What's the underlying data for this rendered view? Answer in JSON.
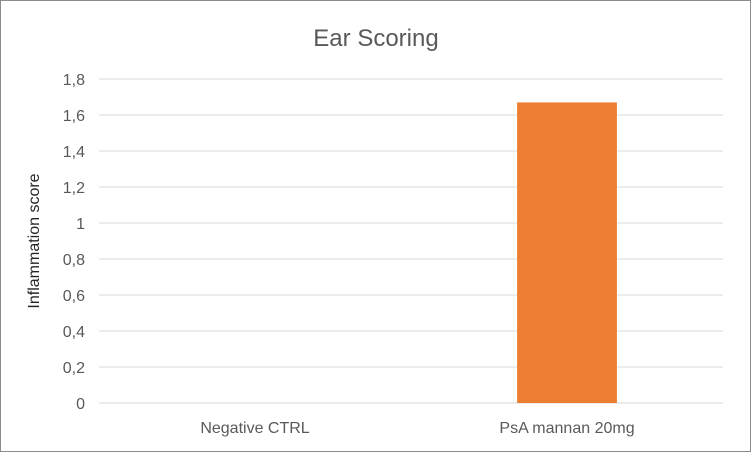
{
  "chart_data": {
    "type": "bar",
    "title": "Ear Scoring",
    "xlabel": "",
    "ylabel": "Inflammation score",
    "categories": [
      "Negative CTRL",
      "PsA mannan 20mg"
    ],
    "values": [
      0,
      1.67
    ],
    "ylim": [
      0,
      1.8
    ],
    "yticks": [
      0,
      0.2,
      0.4,
      0.6,
      0.8,
      1,
      1.2,
      1.4,
      1.6,
      1.8
    ],
    "ytick_labels": [
      "0",
      "0,2",
      "0,4",
      "0,6",
      "0,8",
      "1",
      "1,2",
      "1,4",
      "1,6",
      "1,8"
    ],
    "bar_color": "#ED7D31",
    "grid": true,
    "legend": "none"
  }
}
